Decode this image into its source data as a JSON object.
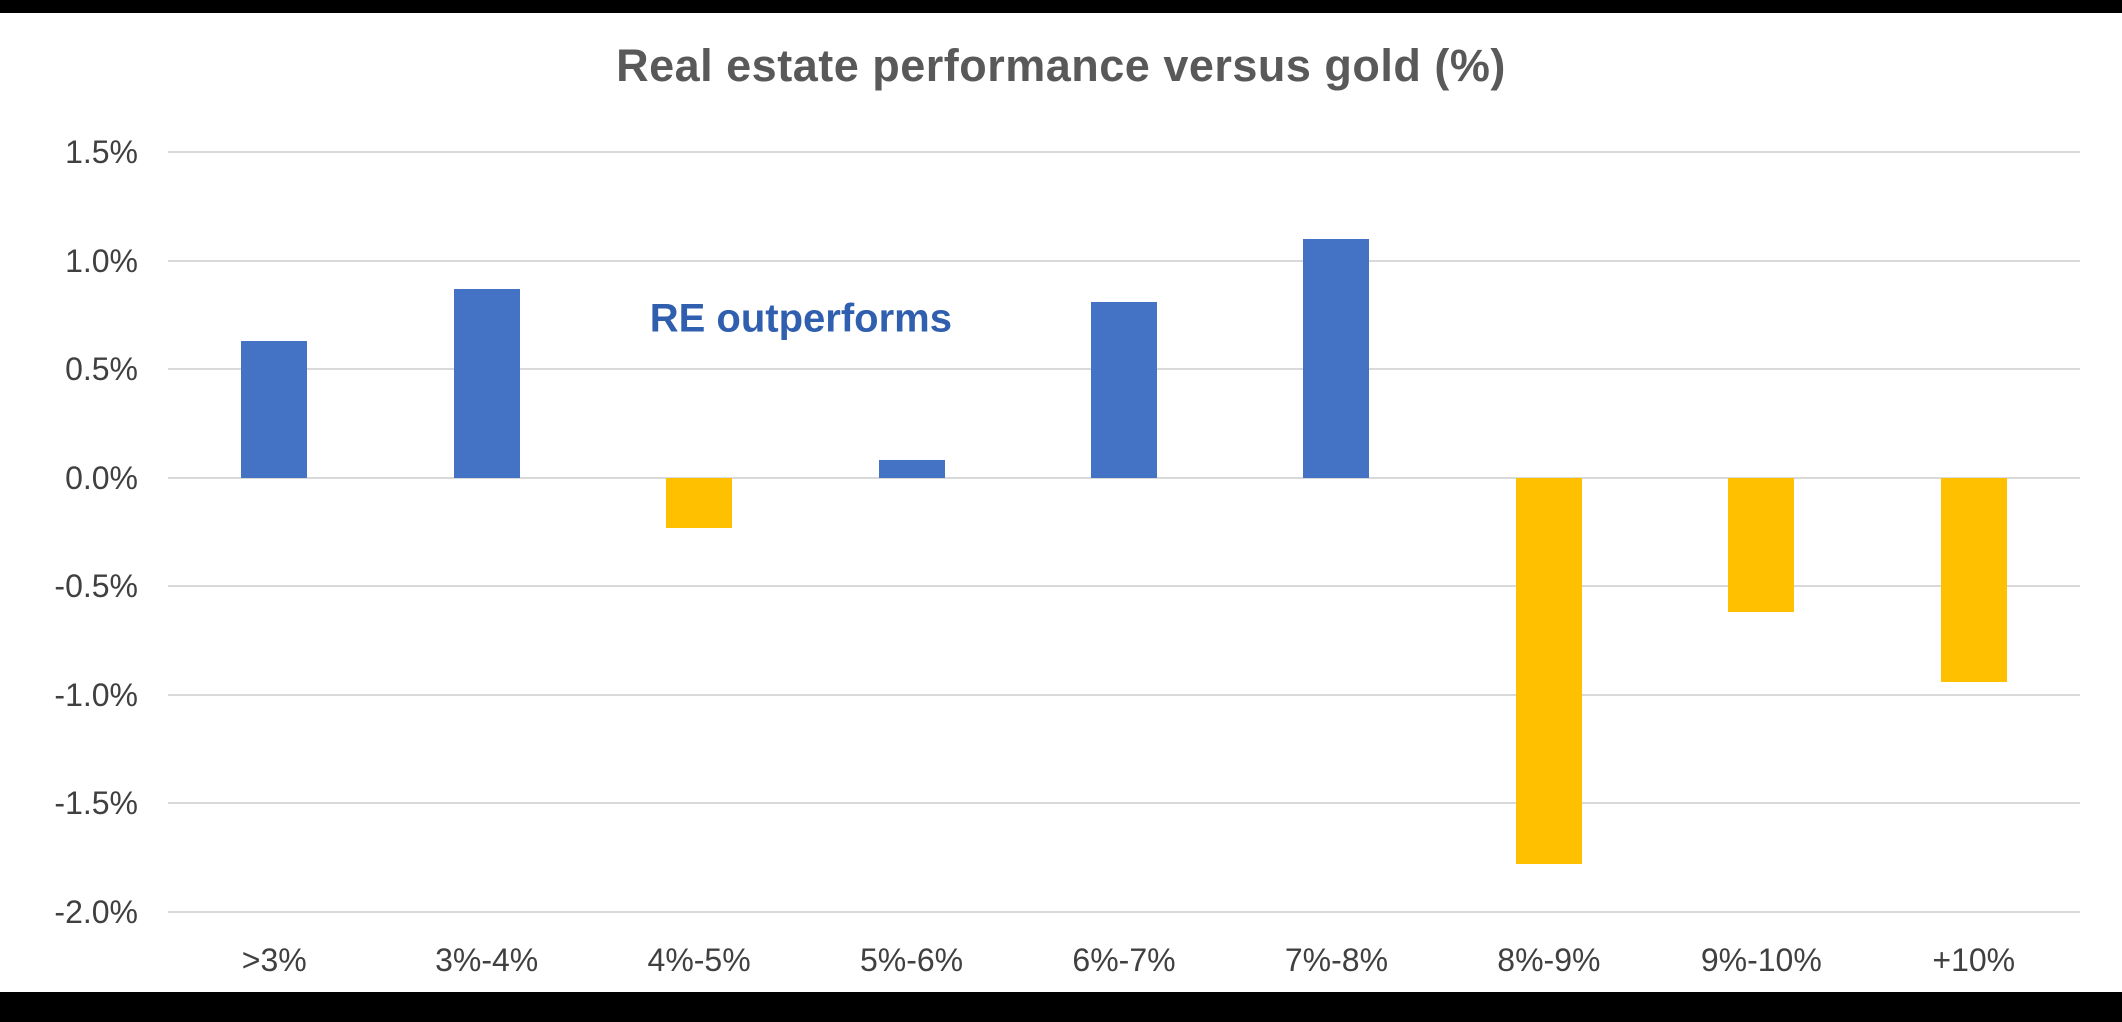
{
  "frame": {
    "background": "#ffffff",
    "border_color": "#000000"
  },
  "chart_data": {
    "type": "bar",
    "title": "Real estate performance versus gold (%)",
    "title_color": "#595959",
    "categories": [
      ">3%",
      "3%-4%",
      "4%-5%",
      "5%-6%",
      "6%-7%",
      "7%-8%",
      "8%-9%",
      "9%-10%",
      "+10%"
    ],
    "values": [
      0.63,
      0.87,
      -0.23,
      0.08,
      0.81,
      1.1,
      -1.78,
      -0.62,
      -0.94
    ],
    "positive_color": "#4472C4",
    "negative_color": "#FFC000",
    "xlabel": "",
    "ylabel": "",
    "ylim": [
      -2.0,
      1.5
    ],
    "yticks": [
      {
        "v": 1.5,
        "label": "1.5%"
      },
      {
        "v": 1.0,
        "label": "1.0%"
      },
      {
        "v": 0.5,
        "label": "0.5%"
      },
      {
        "v": 0.0,
        "label": "0.0%"
      },
      {
        "v": -0.5,
        "label": "-0.5%"
      },
      {
        "v": -1.0,
        "label": "-1.0%"
      },
      {
        "v": -1.5,
        "label": "-1.5%"
      },
      {
        "v": -2.0,
        "label": "-2.0%"
      }
    ],
    "grid": true,
    "gridline_color": "#d9d9d9",
    "axis_label_color": "#404040",
    "legend": "none",
    "annotation": {
      "text": "RE outperforms",
      "color": "#2F5FAE",
      "x_frac": 0.331,
      "y_value": 0.73
    }
  }
}
